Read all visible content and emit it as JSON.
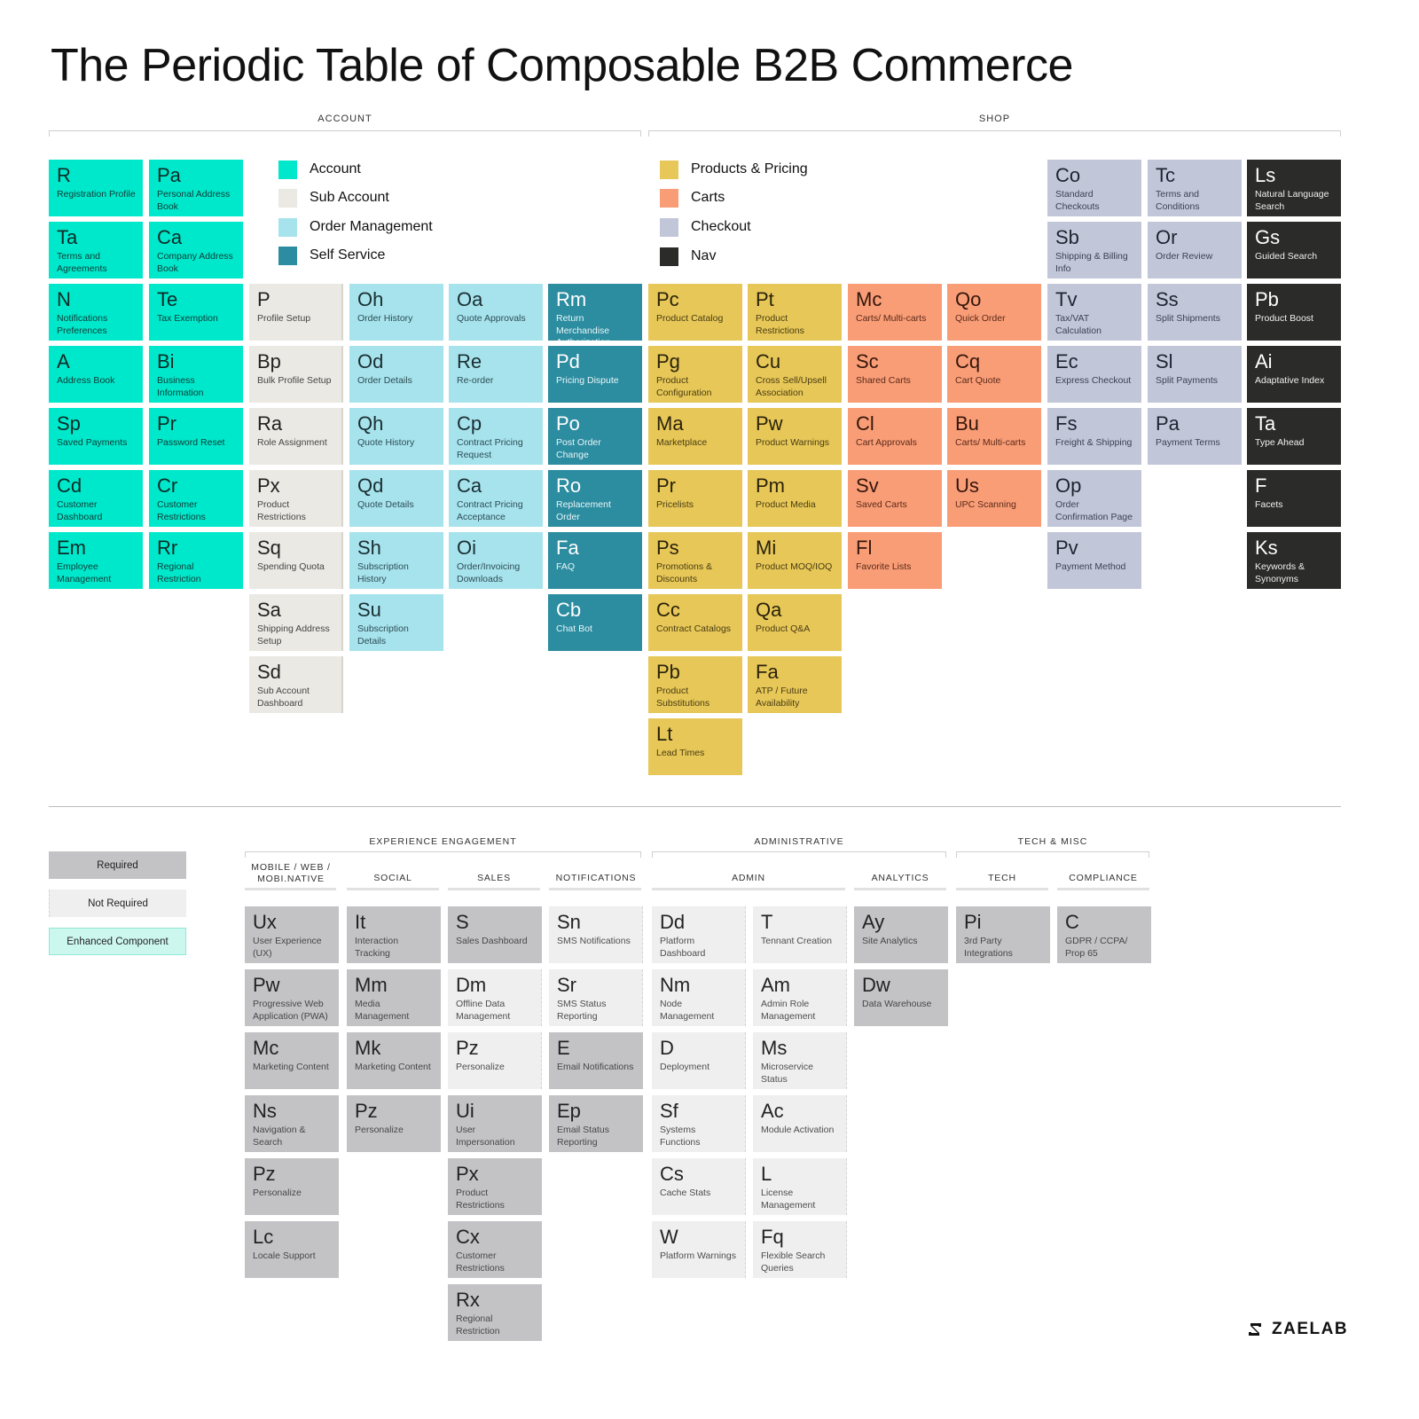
{
  "title": "The Periodic Table of Composable B2B Commerce",
  "sections": {
    "account": "ACCOUNT",
    "shop": "SHOP"
  },
  "legend": {
    "account": "Account",
    "sub_account": "Sub Account",
    "order_management": "Order Management",
    "self_service": "Self Service",
    "products_pricing": "Products & Pricing",
    "carts": "Carts",
    "checkout": "Checkout",
    "nav": "Nav"
  },
  "colors": {
    "account": "#00e8cb",
    "sub_account": "#ebe9e3",
    "order_management": "#a7e3ec",
    "self_service": "#2c8ca0",
    "products_pricing": "#e6c758",
    "carts": "#f99d77",
    "checkout": "#c2c6d9",
    "nav": "#2b2b29",
    "required": "#c3c3c6",
    "not_required": "#efefef",
    "enhanced": "#ccf7ef"
  },
  "top_columns": [
    {
      "category": "account",
      "tiles": [
        {
          "symbol": "R",
          "name": "Registration Profile"
        },
        {
          "symbol": "Ta",
          "name": "Terms and Agreements"
        },
        {
          "symbol": "N",
          "name": "Notifications Preferences"
        },
        {
          "symbol": "A",
          "name": "Address Book"
        },
        {
          "symbol": "Sp",
          "name": "Saved Payments"
        },
        {
          "symbol": "Cd",
          "name": "Customer Dashboard"
        },
        {
          "symbol": "Em",
          "name": "Employee Management"
        }
      ]
    },
    {
      "category": "account",
      "tiles": [
        {
          "symbol": "Pa",
          "name": "Personal Address Book"
        },
        {
          "symbol": "Ca",
          "name": "Company Address Book"
        },
        {
          "symbol": "Te",
          "name": "Tax Exemption"
        },
        {
          "symbol": "Bi",
          "name": "Business Information"
        },
        {
          "symbol": "Pr",
          "name": "Password Reset"
        },
        {
          "symbol": "Cr",
          "name": "Customer Restrictions"
        },
        {
          "symbol": "Rr",
          "name": "Regional Restriction"
        }
      ]
    },
    {
      "category": "sub_account",
      "tiles": [
        {
          "symbol": "P",
          "name": "Profile Setup"
        },
        {
          "symbol": "Bp",
          "name": "Bulk Profile Setup"
        },
        {
          "symbol": "Ra",
          "name": "Role Assignment"
        },
        {
          "symbol": "Px",
          "name": "Product Restrictions"
        },
        {
          "symbol": "Sq",
          "name": "Spending Quota"
        },
        {
          "symbol": "Sa",
          "name": "Shipping Address Setup"
        },
        {
          "symbol": "Sd",
          "name": "Sub Account Dashboard"
        }
      ]
    },
    {
      "category": "order_management",
      "tiles": [
        {
          "symbol": "Oh",
          "name": "Order History"
        },
        {
          "symbol": "Od",
          "name": "Order Details"
        },
        {
          "symbol": "Qh",
          "name": "Quote History"
        },
        {
          "symbol": "Qd",
          "name": "Quote Details"
        },
        {
          "symbol": "Sh",
          "name": "Subscription History"
        },
        {
          "symbol": "Su",
          "name": "Subscription Details"
        }
      ]
    },
    {
      "category": "order_management",
      "tiles": [
        {
          "symbol": "Oa",
          "name": "Quote Approvals"
        },
        {
          "symbol": "Re",
          "name": "Re-order"
        },
        {
          "symbol": "Cp",
          "name": "Contract Pricing Request"
        },
        {
          "symbol": "Ca",
          "name": "Contract Pricing Acceptance"
        },
        {
          "symbol": "Oi",
          "name": "Order/Invoicing Downloads"
        }
      ]
    },
    {
      "category": "self_service",
      "tiles": [
        {
          "symbol": "Rm",
          "name": "Return Merchandise Authorization"
        },
        {
          "symbol": "Pd",
          "name": "Pricing Dispute"
        },
        {
          "symbol": "Po",
          "name": "Post Order Change"
        },
        {
          "symbol": "Ro",
          "name": "Replacement Order"
        },
        {
          "symbol": "Fa",
          "name": "FAQ"
        },
        {
          "symbol": "Cb",
          "name": "Chat Bot"
        }
      ]
    },
    {
      "category": "products_pricing",
      "tiles": [
        {
          "symbol": "Pc",
          "name": "Product Catalog"
        },
        {
          "symbol": "Pg",
          "name": "Product Configuration"
        },
        {
          "symbol": "Ma",
          "name": "Marketplace"
        },
        {
          "symbol": "Pr",
          "name": "Pricelists"
        },
        {
          "symbol": "Ps",
          "name": "Promotions & Discounts"
        },
        {
          "symbol": "Cc",
          "name": "Contract Catalogs"
        },
        {
          "symbol": "Pb",
          "name": "Product Substitutions"
        },
        {
          "symbol": "Lt",
          "name": "Lead Times"
        }
      ]
    },
    {
      "category": "products_pricing",
      "tiles": [
        {
          "symbol": "Pt",
          "name": "Product Restrictions"
        },
        {
          "symbol": "Cu",
          "name": "Cross Sell/Upsell Association"
        },
        {
          "symbol": "Pw",
          "name": "Product Warnings"
        },
        {
          "symbol": "Pm",
          "name": "Product Media"
        },
        {
          "symbol": "Mi",
          "name": "Product MOQ/IOQ"
        },
        {
          "symbol": "Qa",
          "name": "Product Q&A"
        },
        {
          "symbol": "Fa",
          "name": "ATP / Future Availability"
        }
      ]
    },
    {
      "category": "carts",
      "tiles": [
        {
          "symbol": "Mc",
          "name": "Carts/ Multi-carts"
        },
        {
          "symbol": "Sc",
          "name": "Shared Carts"
        },
        {
          "symbol": "Cl",
          "name": "Cart Approvals"
        },
        {
          "symbol": "Sv",
          "name": "Saved Carts"
        },
        {
          "symbol": "Fl",
          "name": "Favorite Lists"
        }
      ]
    },
    {
      "category": "carts",
      "tiles": [
        {
          "symbol": "Qo",
          "name": "Quick Order"
        },
        {
          "symbol": "Cq",
          "name": "Cart Quote"
        },
        {
          "symbol": "Bu",
          "name": "Carts/ Multi-carts"
        },
        {
          "symbol": "Us",
          "name": "UPC Scanning"
        }
      ]
    },
    {
      "category": "checkout",
      "tiles": [
        {
          "symbol": "Co",
          "name": "Standard Checkouts"
        },
        {
          "symbol": "Sb",
          "name": "Shipping & Billing Info"
        },
        {
          "symbol": "Tv",
          "name": "Tax/VAT Calculation"
        },
        {
          "symbol": "Ec",
          "name": "Express Checkout"
        },
        {
          "symbol": "Fs",
          "name": "Freight & Shipping"
        },
        {
          "symbol": "Op",
          "name": "Order Confirmation Page"
        },
        {
          "symbol": "Pv",
          "name": "Payment Method"
        }
      ]
    },
    {
      "category": "checkout",
      "tiles": [
        {
          "symbol": "Tc",
          "name": "Terms and Conditions"
        },
        {
          "symbol": "Or",
          "name": "Order Review"
        },
        {
          "symbol": "Ss",
          "name": "Split Shipments"
        },
        {
          "symbol": "Sl",
          "name": "Split Payments"
        },
        {
          "symbol": "Pa",
          "name": "Payment Terms"
        }
      ]
    },
    {
      "category": "nav",
      "tiles": [
        {
          "symbol": "Ls",
          "name": "Natural Language Search"
        },
        {
          "symbol": "Gs",
          "name": "Guided Search"
        },
        {
          "symbol": "Pb",
          "name": "Product Boost"
        },
        {
          "symbol": "Ai",
          "name": "Adaptative Index"
        },
        {
          "symbol": "Ta",
          "name": "Type Ahead"
        },
        {
          "symbol": "F",
          "name": "Facets"
        },
        {
          "symbol": "Ks",
          "name": "Keywords & Synonyms"
        }
      ]
    }
  ],
  "key": {
    "required": "Required",
    "not_required": "Not Required",
    "enhanced": "Enhanced Component"
  },
  "bottom_groups": {
    "experience": "EXPERIENCE ENGAGEMENT",
    "administrative": "ADMINISTRATIVE",
    "tech_misc": "TECH & MISC"
  },
  "bottom_subheads": {
    "mobile": "MOBILE / WEB / MOBI.NATIVE",
    "social": "SOCIAL",
    "sales": "SALES",
    "notifications": "NOTIFICATIONS",
    "admin": "ADMIN",
    "analytics": "ANALYTICS",
    "tech": "TECH",
    "compliance": "COMPLIANCE"
  },
  "bottom_columns": [
    {
      "tiles": [
        {
          "symbol": "Ux",
          "name": "User Experience (UX)",
          "required": true
        },
        {
          "symbol": "Pw",
          "name": "Progressive Web Application (PWA)",
          "required": true
        },
        {
          "symbol": "Mc",
          "name": "Marketing Content",
          "required": true
        },
        {
          "symbol": "Ns",
          "name": "Navigation & Search",
          "required": true
        },
        {
          "symbol": "Pz",
          "name": "Personalize",
          "required": true
        },
        {
          "symbol": "Lc",
          "name": "Locale Support",
          "required": true
        }
      ]
    },
    {
      "tiles": [
        {
          "symbol": "It",
          "name": "Interaction Tracking",
          "required": true
        },
        {
          "symbol": "Mm",
          "name": "Media Management",
          "required": true
        },
        {
          "symbol": "Mk",
          "name": "Marketing Content",
          "required": true
        },
        {
          "symbol": "Pz",
          "name": "Personalize",
          "required": true
        }
      ]
    },
    {
      "tiles": [
        {
          "symbol": "S",
          "name": "Sales Dashboard",
          "required": true
        },
        {
          "symbol": "Dm",
          "name": "Offline Data Management",
          "required": false
        },
        {
          "symbol": "Pz",
          "name": "Personalize",
          "required": false
        },
        {
          "symbol": "Ui",
          "name": "User Impersonation",
          "required": true
        },
        {
          "symbol": "Px",
          "name": "Product Restrictions",
          "required": true
        },
        {
          "symbol": "Cx",
          "name": "Customer Restrictions",
          "required": true
        },
        {
          "symbol": "Rx",
          "name": "Regional Restriction",
          "required": true
        }
      ]
    },
    {
      "tiles": [
        {
          "symbol": "Sn",
          "name": "SMS Notifications",
          "required": false
        },
        {
          "symbol": "Sr",
          "name": "SMS Status Reporting",
          "required": false
        },
        {
          "symbol": "E",
          "name": "Email Notifications",
          "required": true
        },
        {
          "symbol": "Ep",
          "name": "Email Status Reporting",
          "required": true
        }
      ]
    },
    {
      "tiles": [
        {
          "symbol": "Dd",
          "name": "Platform Dashboard",
          "required": false
        },
        {
          "symbol": "Nm",
          "name": "Node Management",
          "required": false
        },
        {
          "symbol": "D",
          "name": "Deployment",
          "required": false
        },
        {
          "symbol": "Sf",
          "name": "Systems Functions",
          "required": false
        },
        {
          "symbol": "Cs",
          "name": "Cache Stats",
          "required": false
        },
        {
          "symbol": "W",
          "name": "Platform Warnings",
          "required": false
        }
      ]
    },
    {
      "tiles": [
        {
          "symbol": "T",
          "name": "Tennant Creation",
          "required": false
        },
        {
          "symbol": "Am",
          "name": "Admin Role Management",
          "required": false
        },
        {
          "symbol": "Ms",
          "name": "Microservice Status",
          "required": false
        },
        {
          "symbol": "Ac",
          "name": "Module Activation",
          "required": false
        },
        {
          "symbol": "L",
          "name": "License Management",
          "required": false
        },
        {
          "symbol": "Fq",
          "name": "Flexible Search Queries",
          "required": false
        }
      ]
    },
    {
      "tiles": [
        {
          "symbol": "Ay",
          "name": "Site Analytics",
          "required": true
        },
        {
          "symbol": "Dw",
          "name": "Data Warehouse",
          "required": true
        }
      ]
    },
    {
      "tiles": [
        {
          "symbol": "Pi",
          "name": "3rd Party Integrations",
          "required": true
        }
      ]
    },
    {
      "tiles": [
        {
          "symbol": "C",
          "name": "GDPR / CCPA/ Prop 65",
          "required": true
        }
      ]
    }
  ],
  "logo_text": "ZAELAB"
}
